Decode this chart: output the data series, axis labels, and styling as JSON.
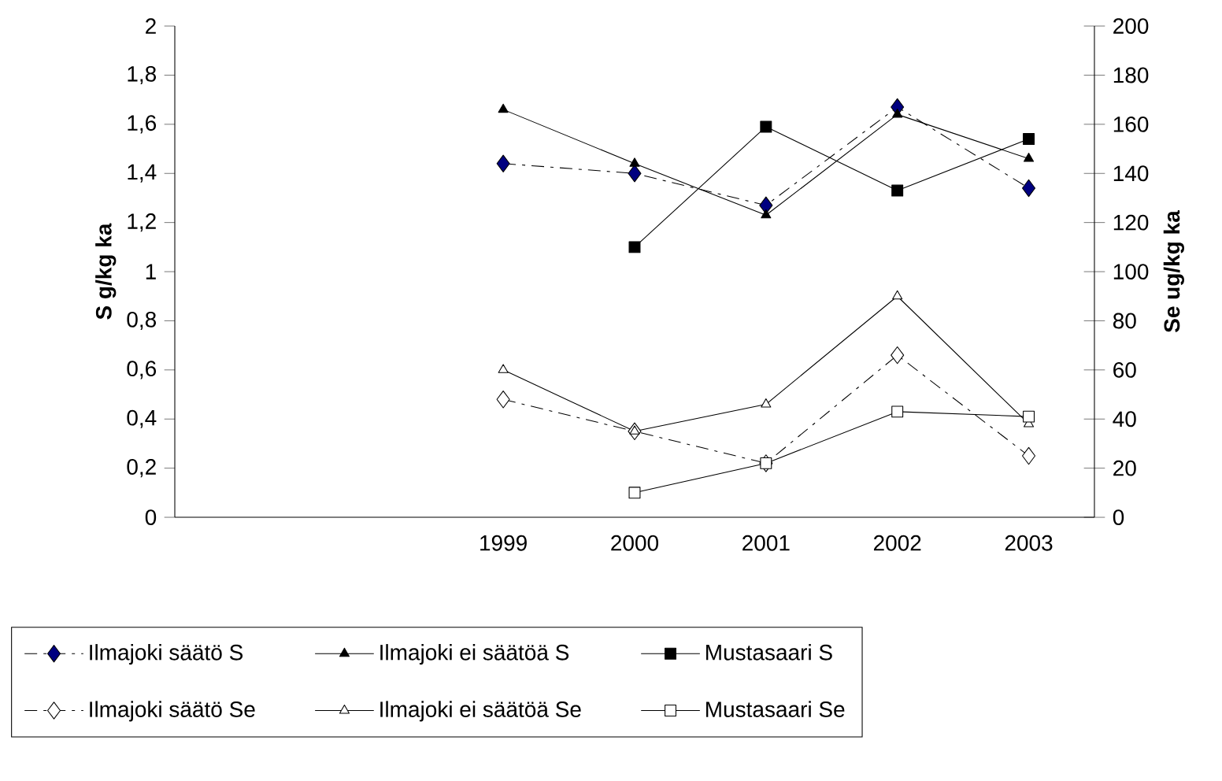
{
  "chart_data": {
    "type": "line",
    "ylabel": "S g/kg ka",
    "y2label": "Se ug/kg ka",
    "categories": [
      null,
      null,
      "1999",
      "2000",
      "2001",
      "2002",
      "2003"
    ],
    "ylim": [
      0,
      2
    ],
    "yticks": [
      0,
      {
        "value": 0.2,
        "label": "0,2"
      },
      {
        "value": 0.4,
        "label": "0,4"
      },
      {
        "value": 0.6,
        "label": "0,6"
      },
      {
        "value": 0.8,
        "label": "0,8"
      },
      1,
      {
        "value": 1.2,
        "label": "1,2"
      },
      {
        "value": 1.4,
        "label": "1,4"
      },
      {
        "value": 1.6,
        "label": "1,6"
      },
      {
        "value": 1.8,
        "label": "1,8"
      },
      2
    ],
    "y2lim": [
      0,
      200
    ],
    "y2ticks": [
      0,
      20,
      40,
      60,
      80,
      100,
      120,
      140,
      160,
      180,
      200
    ],
    "legend": "bottom",
    "grid": false,
    "series": [
      {
        "name": "Ilmajoki säätö S",
        "color": "#000080",
        "marker": "diamond",
        "line_style": "dashdot",
        "values": [
          null,
          null,
          1.44,
          1.4,
          1.27,
          1.67,
          1.34
        ]
      },
      {
        "name": "Ilmajoki ei säätöä S",
        "color": "#000000",
        "marker": "triangle",
        "line_style": "solid",
        "values": [
          null,
          null,
          1.66,
          1.44,
          1.23,
          1.64,
          1.46
        ]
      },
      {
        "name": "Mustasaari S",
        "color": "#000000",
        "marker": "square",
        "line_style": "solid",
        "values": [
          null,
          null,
          null,
          1.1,
          1.59,
          1.33,
          1.54
        ]
      },
      {
        "name": "Ilmajoki säätö Se",
        "color": "#ffffff",
        "marker": "diamond",
        "line_style": "dashdot",
        "axis": "y2",
        "values": [
          null,
          null,
          48,
          35,
          22,
          66,
          25
        ]
      },
      {
        "name": "Ilmajoki ei säätöä Se",
        "color": "#ffffff",
        "marker": "triangle",
        "line_style": "solid",
        "axis": "y2",
        "values": [
          null,
          null,
          60,
          35,
          46,
          90,
          38
        ]
      },
      {
        "name": "Mustasaari Se",
        "color": "#ffffff",
        "marker": "square",
        "line_style": "solid",
        "axis": "y2",
        "values": [
          null,
          null,
          null,
          10,
          22,
          43,
          41
        ]
      }
    ]
  }
}
